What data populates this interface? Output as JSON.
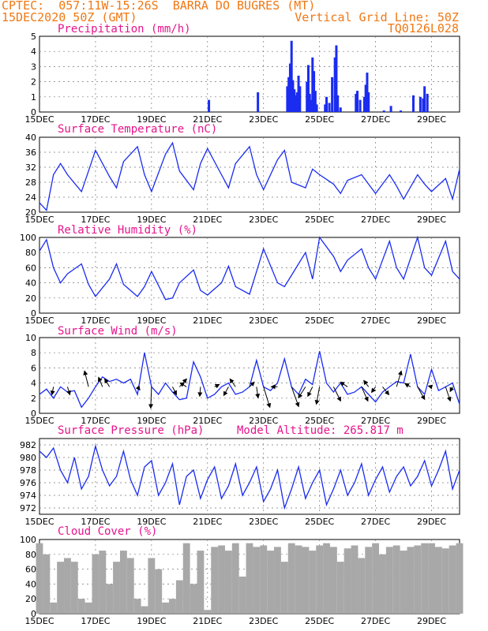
{
  "header": {
    "line1": "CPTEC:  057:11W-15:26S  BARRA DO BUGRES (MT)",
    "date": "15DEC2020 50Z (GMT)",
    "grid_note": "Vertical Grid Line: 50Z",
    "code": "TQ0126L028",
    "accent_color": "#f07814"
  },
  "chart_data": [
    {
      "type": "bar",
      "title": "Precipitation (mm/h)",
      "ylim": [
        0,
        5
      ],
      "yticks": [
        0,
        1,
        2,
        3,
        4,
        5
      ],
      "xlim": [
        0,
        15
      ],
      "xticks": [
        "15DEC",
        "17DEC",
        "19DEC",
        "21DEC",
        "23DEC",
        "25DEC",
        "27DEC",
        "29DEC"
      ],
      "xticks_at": [
        0,
        2,
        4,
        6,
        8,
        10,
        12,
        14
      ],
      "color": "#1a2cf0",
      "x": [
        6.05,
        7.8,
        8.85,
        8.9,
        8.95,
        9.0,
        9.05,
        9.1,
        9.15,
        9.2,
        9.25,
        9.3,
        9.55,
        9.6,
        9.65,
        9.7,
        9.75,
        9.8,
        9.85,
        9.9,
        10.2,
        10.25,
        10.35,
        10.45,
        10.55,
        10.6,
        10.65,
        10.75,
        11.3,
        11.35,
        11.45,
        11.6,
        11.65,
        11.7,
        11.75,
        12.3,
        12.55,
        12.9,
        13.35,
        13.6,
        13.7,
        13.75,
        13.85
      ],
      "values": [
        0.8,
        1.3,
        1.7,
        2.3,
        3.2,
        4.7,
        2.1,
        1.5,
        1.1,
        1.3,
        2.4,
        1.7,
        2.0,
        3.1,
        1.2,
        0.8,
        3.6,
        2.7,
        1.4,
        0.5,
        0.5,
        1.0,
        0.6,
        2.3,
        3.6,
        4.4,
        1.1,
        0.3,
        1.2,
        1.4,
        0.8,
        1.0,
        1.8,
        2.6,
        1.3,
        0.1,
        0.4,
        0.1,
        1.1,
        1.0,
        0.9,
        1.7,
        1.2
      ]
    },
    {
      "type": "line",
      "title": "Surface Temperature (nC)",
      "ylim": [
        20,
        40
      ],
      "yticks": [
        20,
        24,
        28,
        32,
        36,
        40
      ],
      "xlim": [
        0,
        15
      ],
      "xticks": [
        "15DEC",
        "17DEC",
        "19DEC",
        "21DEC",
        "23DEC",
        "25DEC",
        "27DEC",
        "29DEC"
      ],
      "xticks_at": [
        0,
        2,
        4,
        6,
        8,
        10,
        12,
        14
      ],
      "color": "#1a2cf0",
      "x": [
        0.0,
        0.25,
        0.5,
        0.75,
        1.0,
        1.5,
        1.75,
        2.0,
        2.5,
        2.75,
        3.0,
        3.5,
        3.75,
        4.0,
        4.5,
        4.75,
        5.0,
        5.5,
        5.75,
        6.0,
        6.5,
        6.75,
        7.0,
        7.5,
        7.75,
        8.0,
        8.5,
        8.75,
        9.0,
        9.5,
        9.75,
        10.0,
        10.5,
        10.75,
        11.0,
        11.5,
        11.75,
        12.0,
        12.5,
        12.75,
        13.0,
        13.5,
        13.75,
        14.0,
        14.5,
        14.75,
        15.0
      ],
      "values": [
        22.5,
        20.5,
        30.0,
        33.0,
        30.0,
        25.5,
        31.0,
        36.5,
        29.5,
        26.5,
        33.5,
        37.5,
        30.0,
        25.5,
        35.5,
        38.5,
        31.0,
        26.0,
        33.0,
        37.0,
        30.0,
        26.5,
        33.0,
        37.5,
        30.0,
        26.0,
        34.0,
        36.5,
        28.0,
        26.5,
        31.5,
        30.0,
        27.5,
        25.0,
        28.5,
        30.0,
        27.5,
        25.0,
        30.0,
        27.0,
        23.5,
        30.0,
        27.5,
        25.5,
        29.0,
        23.5,
        31.5
      ]
    },
    {
      "type": "line",
      "title": "Relative Humidity (%)",
      "ylim": [
        0,
        100
      ],
      "yticks": [
        0,
        20,
        40,
        60,
        80,
        100
      ],
      "xlim": [
        0,
        15
      ],
      "xticks": [
        "15DEC",
        "17DEC",
        "19DEC",
        "21DEC",
        "23DEC",
        "25DEC",
        "27DEC",
        "29DEC"
      ],
      "xticks_at": [
        0,
        2,
        4,
        6,
        8,
        10,
        12,
        14
      ],
      "color": "#1a2cf0",
      "x": [
        0.0,
        0.25,
        0.5,
        0.75,
        1.0,
        1.5,
        1.75,
        2.0,
        2.5,
        2.75,
        3.0,
        3.5,
        3.75,
        4.0,
        4.5,
        4.75,
        5.0,
        5.5,
        5.75,
        6.0,
        6.5,
        6.75,
        7.0,
        7.5,
        7.75,
        8.0,
        8.5,
        8.75,
        9.0,
        9.5,
        9.75,
        10.0,
        10.5,
        10.75,
        11.0,
        11.5,
        11.75,
        12.0,
        12.5,
        12.75,
        13.0,
        13.5,
        13.75,
        14.0,
        14.5,
        14.75,
        15.0
      ],
      "values": [
        82,
        97,
        60,
        40,
        52,
        65,
        38,
        22,
        45,
        65,
        38,
        22,
        35,
        55,
        18,
        20,
        40,
        57,
        30,
        24,
        40,
        62,
        35,
        25,
        55,
        85,
        40,
        35,
        50,
        80,
        45,
        100,
        75,
        55,
        70,
        85,
        60,
        45,
        95,
        60,
        45,
        100,
        60,
        50,
        95,
        55,
        45
      ]
    },
    {
      "type": "line",
      "title": "Surface Wind (m/s)",
      "ylim": [
        0,
        10
      ],
      "yticks": [
        0,
        2,
        4,
        6,
        8,
        10
      ],
      "xlim": [
        0,
        15
      ],
      "xticks": [
        "15DEC",
        "17DEC",
        "19DEC",
        "21DEC",
        "23DEC",
        "25DEC",
        "27DEC",
        "29DEC"
      ],
      "xticks_at": [
        0,
        2,
        4,
        6,
        8,
        10,
        12,
        14
      ],
      "color": "#1a2cf0",
      "x": [
        0.0,
        0.25,
        0.5,
        0.75,
        1.0,
        1.25,
        1.5,
        1.75,
        2.0,
        2.25,
        2.5,
        2.75,
        3.0,
        3.25,
        3.5,
        3.75,
        4.0,
        4.25,
        4.5,
        4.75,
        5.0,
        5.25,
        5.5,
        5.75,
        6.0,
        6.25,
        6.5,
        6.75,
        7.0,
        7.25,
        7.5,
        7.75,
        8.0,
        8.25,
        8.5,
        8.75,
        9.0,
        9.25,
        9.5,
        9.75,
        10.0,
        10.25,
        10.5,
        10.75,
        11.0,
        11.25,
        11.5,
        11.75,
        12.0,
        12.25,
        12.5,
        12.75,
        13.0,
        13.25,
        13.5,
        13.75,
        14.0,
        14.25,
        14.5,
        14.75,
        15.0
      ],
      "values": [
        2.5,
        3.2,
        2.0,
        3.5,
        2.8,
        3.0,
        0.8,
        2.0,
        3.5,
        4.8,
        4.2,
        4.5,
        4.0,
        4.5,
        2.5,
        8.0,
        3.5,
        2.5,
        4.0,
        2.8,
        1.8,
        2.0,
        6.8,
        4.8,
        2.0,
        2.5,
        3.5,
        4.0,
        2.5,
        2.8,
        3.5,
        7.0,
        3.5,
        3.0,
        4.0,
        7.2,
        3.5,
        2.5,
        4.5,
        3.8,
        8.2,
        4.0,
        2.8,
        4.0,
        2.5,
        2.8,
        3.5,
        2.5,
        1.5,
        2.8,
        3.5,
        4.2,
        4.0,
        7.8,
        3.5,
        2.5,
        5.8,
        3.0,
        3.5,
        4.0,
        1.2
      ],
      "arrows_at": [
        0.5,
        1.0,
        1.75,
        2.25,
        2.5,
        3.5,
        4.0,
        4.75,
        5.0,
        5.25,
        5.75,
        6.25,
        6.75,
        7.0,
        7.5,
        7.75,
        8.0,
        8.5,
        9.0,
        9.5,
        9.75,
        10.0,
        10.5,
        11.0,
        11.5,
        11.75,
        12.0,
        12.25,
        12.75,
        13.25,
        13.5,
        14.0,
        14.5,
        14.75
      ],
      "arrows_dx": [
        -0.2,
        0.3,
        -0.5,
        -0.5,
        -0.6,
        0.3,
        -0.1,
        0.5,
        0.9,
        -0.8,
        -0.1,
        0.6,
        -0.6,
        -0.7,
        0.6,
        0.2,
        0.8,
        -0.8,
        0.9,
        -0.9,
        -0.6,
        -0.4,
        0.9,
        -0.9,
        0.8,
        -0.6,
        -0.5,
        0.8,
        0.6,
        -0.7,
        0.9,
        -0.4,
        0.6,
        -0.3
      ],
      "arrows_dy": [
        -1.0,
        -1.0,
        2.0,
        1.2,
        1.0,
        -0.4,
        -2.7,
        -1.0,
        1.0,
        0.5,
        -1.2,
        0.3,
        -1.1,
        1.0,
        0.6,
        -1.4,
        -2.6,
        0.0,
        -2.5,
        -1.4,
        -1.2,
        -2.2,
        -1.8,
        0.6,
        -1.8,
        0.8,
        -0.7,
        -1.0,
        2.0,
        0.4,
        -1.6,
        0.1,
        -1.8,
        -0.6
      ]
    },
    {
      "type": "line",
      "title": "Surface Pressure (hPa)",
      "annotation": "Model Altitude: 265.817 m",
      "ylim": [
        971,
        983
      ],
      "yticks": [
        972,
        974,
        976,
        978,
        980,
        982
      ],
      "xlim": [
        0,
        15
      ],
      "xticks": [
        "15DEC",
        "17DEC",
        "19DEC",
        "21DEC",
        "23DEC",
        "25DEC",
        "27DEC",
        "29DEC"
      ],
      "xticks_at": [
        0,
        2,
        4,
        6,
        8,
        10,
        12,
        14
      ],
      "color": "#1a2cf0",
      "x": [
        0.0,
        0.25,
        0.5,
        0.75,
        1.0,
        1.25,
        1.5,
        1.75,
        2.0,
        2.25,
        2.5,
        2.75,
        3.0,
        3.25,
        3.5,
        3.75,
        4.0,
        4.25,
        4.5,
        4.75,
        5.0,
        5.25,
        5.5,
        5.75,
        6.0,
        6.25,
        6.5,
        6.75,
        7.0,
        7.25,
        7.5,
        7.75,
        8.0,
        8.25,
        8.5,
        8.75,
        9.0,
        9.25,
        9.5,
        9.75,
        10.0,
        10.25,
        10.5,
        10.75,
        11.0,
        11.25,
        11.5,
        11.75,
        12.0,
        12.25,
        12.5,
        12.75,
        13.0,
        13.25,
        13.5,
        13.75,
        14.0,
        14.25,
        14.5,
        14.75,
        15.0
      ],
      "values": [
        981.0,
        980.0,
        981.5,
        978.0,
        976.0,
        980.0,
        975.0,
        977.0,
        981.8,
        978.0,
        975.5,
        977.0,
        981.0,
        976.5,
        974.0,
        978.5,
        979.5,
        974.0,
        976.0,
        979.0,
        972.5,
        977.0,
        978.0,
        973.5,
        976.5,
        978.5,
        973.5,
        975.5,
        979.0,
        974.0,
        976.0,
        978.5,
        973.0,
        975.0,
        978.0,
        972.0,
        975.0,
        978.5,
        973.5,
        976.0,
        978.0,
        972.5,
        975.0,
        978.0,
        974.0,
        976.0,
        979.0,
        974.0,
        976.5,
        978.5,
        974.5,
        977.0,
        978.5,
        975.5,
        977.0,
        979.5,
        975.5,
        978.0,
        981.0,
        975.0,
        978.0
      ]
    },
    {
      "type": "area",
      "title": "Cloud Cover (%)",
      "ylim": [
        0,
        100
      ],
      "yticks": [
        0,
        20,
        40,
        60,
        80,
        100
      ],
      "xlim": [
        0,
        15
      ],
      "xticks": [
        "15DEC",
        "17DEC",
        "19DEC",
        "21DEC",
        "23DEC",
        "25DEC",
        "27DEC",
        "29DEC"
      ],
      "xticks_at": [
        0,
        2,
        4,
        6,
        8,
        10,
        12,
        14
      ],
      "color": "#a8a8a8",
      "x": [
        0.0,
        0.25,
        0.5,
        0.75,
        1.0,
        1.25,
        1.5,
        1.75,
        2.0,
        2.25,
        2.5,
        2.75,
        3.0,
        3.25,
        3.5,
        3.75,
        4.0,
        4.25,
        4.5,
        4.75,
        5.0,
        5.25,
        5.5,
        5.75,
        6.0,
        6.25,
        6.5,
        6.75,
        7.0,
        7.25,
        7.5,
        7.75,
        8.0,
        8.25,
        8.5,
        8.75,
        9.0,
        9.25,
        9.5,
        9.75,
        10.0,
        10.25,
        10.5,
        10.75,
        11.0,
        11.25,
        11.5,
        11.75,
        12.0,
        12.25,
        12.5,
        12.75,
        13.0,
        13.25,
        13.5,
        13.75,
        14.0,
        14.25,
        14.5,
        14.75,
        15.0
      ],
      "values": [
        95,
        80,
        15,
        70,
        75,
        70,
        20,
        15,
        80,
        85,
        40,
        70,
        85,
        75,
        20,
        10,
        75,
        60,
        15,
        20,
        45,
        95,
        40,
        85,
        5,
        90,
        92,
        85,
        95,
        50,
        95,
        90,
        92,
        85,
        90,
        70,
        95,
        92,
        90,
        85,
        92,
        95,
        90,
        70,
        88,
        92,
        75,
        90,
        95,
        80,
        90,
        92,
        85,
        90,
        92,
        95,
        95,
        90,
        88,
        92,
        95
      ]
    }
  ]
}
